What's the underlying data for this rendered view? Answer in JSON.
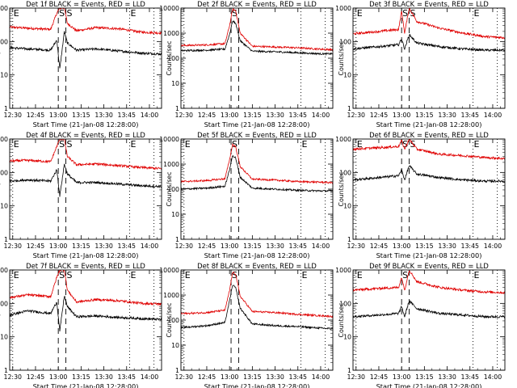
{
  "chart_data": [
    {
      "type": "line",
      "title": "Det 1f BLACK = Events, RED = LLD",
      "xlabel": "Start Time (21-Jan-08 12:28:00)",
      "ylabel": "Counts/sec",
      "x_ticks": [
        "12:30",
        "12:45",
        "13:00",
        "13:15",
        "13:30",
        "13:45",
        "14:00"
      ],
      "y_ticks": [
        "1",
        "10",
        "100",
        "1000"
      ],
      "ylim": [
        1,
        1000
      ],
      "y_scale": "log",
      "markers": [
        {
          "label": "E",
          "kind": "dotted",
          "time": "12:30"
        },
        {
          "label": "S",
          "kind": "dashed",
          "time": "13:00"
        },
        {
          "label": "S",
          "kind": "dashed",
          "time": "13:05"
        },
        {
          "label": "E",
          "kind": "dotted",
          "time": "13:47"
        },
        {
          "label": "",
          "kind": "dotted",
          "time": "14:03"
        }
      ],
      "series": [
        {
          "color": "#e00000",
          "x": [
            "12:28",
            "12:40",
            "12:55",
            "12:59",
            "13:01",
            "13:04",
            "13:06",
            "13:12",
            "13:25",
            "13:40",
            "13:55",
            "14:08"
          ],
          "values": [
            270,
            250,
            230,
            700,
            1000,
            1000,
            350,
            210,
            260,
            240,
            190,
            180
          ]
        },
        {
          "color": "#000000",
          "x": [
            "12:28",
            "12:40",
            "12:55",
            "12:59",
            "13:01",
            "13:04",
            "13:06",
            "13:12",
            "13:25",
            "13:40",
            "13:55",
            "14:08"
          ],
          "values": [
            65,
            60,
            55,
            110,
            15,
            200,
            90,
            55,
            60,
            52,
            45,
            42
          ]
        }
      ]
    },
    {
      "type": "line",
      "title": "Det 2f BLACK = Events, RED = LLD",
      "xlabel": "Start Time (21-Jan-08 12:28:00)",
      "ylabel": "Counts/sec",
      "x_ticks": [
        "12:30",
        "12:45",
        "13:00",
        "13:15",
        "13:30",
        "13:45",
        "14:00"
      ],
      "y_ticks": [
        "1",
        "10",
        "100",
        "1000",
        "10000"
      ],
      "ylim": [
        1,
        10000
      ],
      "y_scale": "log",
      "markers": [
        {
          "label": "",
          "kind": "dotted",
          "time": "12:30"
        },
        {
          "label": "S",
          "kind": "dashed",
          "time": "13:01"
        },
        {
          "label": "",
          "kind": "dashed",
          "time": "13:06"
        },
        {
          "label": "",
          "kind": "dotted",
          "time": "13:47"
        },
        {
          "label": "",
          "kind": "dotted",
          "time": "14:03"
        }
      ],
      "series": [
        {
          "color": "#e00000",
          "x": [
            "12:28",
            "12:45",
            "12:57",
            "13:00",
            "13:02",
            "13:04",
            "13:07",
            "13:15",
            "13:30",
            "13:45",
            "14:00",
            "14:08"
          ],
          "values": [
            320,
            340,
            380,
            2000,
            9000,
            8000,
            1000,
            300,
            280,
            260,
            230,
            220
          ]
        },
        {
          "color": "#000000",
          "x": [
            "12:28",
            "12:45",
            "12:57",
            "13:00",
            "13:02",
            "13:04",
            "13:07",
            "13:15",
            "13:30",
            "13:45",
            "14:00",
            "14:08"
          ],
          "values": [
            200,
            210,
            230,
            900,
            3000,
            2500,
            500,
            190,
            180,
            165,
            150,
            150
          ]
        }
      ]
    },
    {
      "type": "line",
      "title": "Det 3f BLACK = Events, RED = LLD",
      "xlabel": "Start Time (21-Jan-08 12:28:00)",
      "ylabel": "Counts/sec",
      "x_ticks": [
        "12:30",
        "12:45",
        "13:00",
        "13:15",
        "13:30",
        "13:45",
        "14:00"
      ],
      "y_ticks": [
        "1",
        "10",
        "100",
        "1000"
      ],
      "ylim": [
        1,
        1000
      ],
      "y_scale": "log",
      "markers": [
        {
          "label": "E",
          "kind": "dotted",
          "time": "12:30"
        },
        {
          "label": "S",
          "kind": "dashed",
          "time": "13:00"
        },
        {
          "label": "S",
          "kind": "dashed",
          "time": "13:05"
        },
        {
          "label": "E",
          "kind": "dotted",
          "time": "13:47"
        },
        {
          "label": "",
          "kind": "dotted",
          "time": "14:03"
        }
      ],
      "series": [
        {
          "color": "#e00000",
          "x": [
            "12:28",
            "12:45",
            "12:58",
            "13:00",
            "13:02",
            "13:05",
            "13:10",
            "13:25",
            "13:40",
            "13:55",
            "14:08"
          ],
          "values": [
            170,
            200,
            230,
            800,
            180,
            1000,
            400,
            250,
            180,
            140,
            130
          ]
        },
        {
          "color": "#000000",
          "x": [
            "12:28",
            "12:45",
            "12:58",
            "13:00",
            "13:02",
            "13:05",
            "13:10",
            "13:25",
            "13:40",
            "13:55",
            "14:08"
          ],
          "values": [
            60,
            70,
            80,
            120,
            60,
            160,
            90,
            70,
            60,
            55,
            55
          ]
        }
      ]
    },
    {
      "type": "line",
      "title": "Det 4f BLACK = Events, RED = LLD",
      "xlabel": "Start Time (21-Jan-08 12:28:00)",
      "ylabel": "Counts/sec",
      "x_ticks": [
        "12:30",
        "12:45",
        "13:00",
        "13:15",
        "13:30",
        "13:45",
        "14:00"
      ],
      "y_ticks": [
        "1",
        "10",
        "100",
        "1000"
      ],
      "ylim": [
        1,
        1000
      ],
      "y_scale": "log",
      "markers": [
        {
          "label": "E",
          "kind": "dotted",
          "time": "12:30"
        },
        {
          "label": "S",
          "kind": "dashed",
          "time": "13:00"
        },
        {
          "label": "S",
          "kind": "dashed",
          "time": "13:05"
        },
        {
          "label": "E",
          "kind": "dotted",
          "time": "13:47"
        },
        {
          "label": "",
          "kind": "dotted",
          "time": "14:03"
        }
      ],
      "series": [
        {
          "color": "#e00000",
          "x": [
            "12:28",
            "12:40",
            "12:55",
            "12:59",
            "13:01",
            "13:04",
            "13:06",
            "13:12",
            "13:25",
            "13:40",
            "13:55",
            "14:08"
          ],
          "values": [
            220,
            230,
            210,
            600,
            1000,
            1000,
            300,
            170,
            180,
            160,
            140,
            130
          ]
        },
        {
          "color": "#000000",
          "x": [
            "12:28",
            "12:40",
            "12:55",
            "12:59",
            "13:01",
            "13:04",
            "13:06",
            "13:12",
            "13:25",
            "13:40",
            "13:55",
            "14:08"
          ],
          "values": [
            55,
            60,
            55,
            120,
            20,
            180,
            90,
            50,
            50,
            45,
            40,
            38
          ]
        }
      ]
    },
    {
      "type": "line",
      "title": "Det 5f BLACK = Events, RED = LLD",
      "xlabel": "Start Time (21-Jan-08 12:28:00)",
      "ylabel": "Counts/sec",
      "x_ticks": [
        "12:30",
        "12:45",
        "13:00",
        "13:15",
        "13:30",
        "13:45",
        "14:00"
      ],
      "y_ticks": [
        "1",
        "10",
        "100",
        "1000",
        "10000"
      ],
      "ylim": [
        1,
        10000
      ],
      "y_scale": "log",
      "markers": [
        {
          "label": "E",
          "kind": "dotted",
          "time": "12:30"
        },
        {
          "label": "S",
          "kind": "dashed",
          "time": "13:01"
        },
        {
          "label": "",
          "kind": "dashed",
          "time": "13:06"
        },
        {
          "label": "E",
          "kind": "dotted",
          "time": "13:47"
        },
        {
          "label": "",
          "kind": "dotted",
          "time": "14:03"
        }
      ],
      "series": [
        {
          "color": "#e00000",
          "x": [
            "12:28",
            "12:45",
            "12:57",
            "13:00",
            "13:02",
            "13:04",
            "13:07",
            "13:15",
            "13:30",
            "13:45",
            "14:00",
            "14:08"
          ],
          "values": [
            200,
            220,
            260,
            1500,
            6000,
            5000,
            800,
            250,
            230,
            200,
            190,
            180
          ]
        },
        {
          "color": "#000000",
          "x": [
            "12:28",
            "12:45",
            "12:57",
            "13:00",
            "13:02",
            "13:04",
            "13:07",
            "13:15",
            "13:30",
            "13:45",
            "14:00",
            "14:08"
          ],
          "values": [
            100,
            110,
            130,
            600,
            2200,
            1800,
            300,
            110,
            100,
            90,
            85,
            85
          ]
        }
      ]
    },
    {
      "type": "line",
      "title": "Det 6f BLACK = Events, RED = LLD",
      "xlabel": "Start Time (21-Jan-08 12:28:00)",
      "ylabel": "Counts/sec",
      "x_ticks": [
        "12:30",
        "12:45",
        "13:00",
        "13:15",
        "13:30",
        "13:45",
        "14:00"
      ],
      "y_ticks": [
        "1",
        "10",
        "100",
        "1000"
      ],
      "ylim": [
        1,
        1000
      ],
      "y_scale": "log",
      "markers": [
        {
          "label": "E",
          "kind": "dotted",
          "time": "12:30"
        },
        {
          "label": "S",
          "kind": "dashed",
          "time": "13:00"
        },
        {
          "label": "S",
          "kind": "dashed",
          "time": "13:05"
        },
        {
          "label": "E",
          "kind": "dotted",
          "time": "13:47"
        },
        {
          "label": "",
          "kind": "dotted",
          "time": "14:03"
        }
      ],
      "series": [
        {
          "color": "#e00000",
          "x": [
            "12:28",
            "12:45",
            "12:58",
            "13:00",
            "13:02",
            "13:05",
            "13:10",
            "13:25",
            "13:40",
            "13:55",
            "14:08"
          ],
          "values": [
            500,
            550,
            600,
            900,
            500,
            1000,
            500,
            350,
            320,
            280,
            260
          ]
        },
        {
          "color": "#000000",
          "x": [
            "12:28",
            "12:45",
            "12:58",
            "13:00",
            "13:02",
            "13:05",
            "13:10",
            "13:25",
            "13:40",
            "13:55",
            "14:08"
          ],
          "values": [
            60,
            70,
            80,
            120,
            60,
            160,
            90,
            70,
            60,
            55,
            55
          ]
        }
      ]
    },
    {
      "type": "line",
      "title": "Det 7f BLACK = Events, RED = LLD",
      "xlabel": "Start Time (21-Jan-08 12:28:00)",
      "ylabel": "Counts/sec",
      "x_ticks": [
        "12:30",
        "12:45",
        "13:00",
        "13:15",
        "13:30",
        "13:45",
        "14:00"
      ],
      "y_ticks": [
        "1",
        "10",
        "100",
        "1000"
      ],
      "ylim": [
        1,
        1000
      ],
      "y_scale": "log",
      "markers": [
        {
          "label": "E",
          "kind": "dotted",
          "time": "12:30"
        },
        {
          "label": "S",
          "kind": "dashed",
          "time": "13:00"
        },
        {
          "label": "S",
          "kind": "dashed",
          "time": "13:05"
        },
        {
          "label": "E",
          "kind": "dotted",
          "time": "13:47"
        },
        {
          "label": "",
          "kind": "dotted",
          "time": "14:03"
        }
      ],
      "series": [
        {
          "color": "#e00000",
          "x": [
            "12:28",
            "12:40",
            "12:55",
            "12:59",
            "13:01",
            "13:04",
            "13:06",
            "13:12",
            "13:25",
            "13:40",
            "13:55",
            "14:08"
          ],
          "values": [
            150,
            180,
            160,
            600,
            1000,
            1000,
            250,
            110,
            130,
            120,
            100,
            95
          ]
        },
        {
          "color": "#000000",
          "x": [
            "12:28",
            "12:40",
            "12:55",
            "12:59",
            "13:01",
            "13:04",
            "13:06",
            "13:12",
            "13:25",
            "13:40",
            "13:55",
            "14:08"
          ],
          "values": [
            45,
            60,
            50,
            110,
            15,
            170,
            80,
            40,
            42,
            38,
            35,
            33
          ]
        }
      ]
    },
    {
      "type": "line",
      "title": "Det 8f BLACK = Events, RED = LLD",
      "xlabel": "Start Time (21-Jan-08 12:28:00)",
      "ylabel": "Counts/sec",
      "x_ticks": [
        "12:30",
        "12:45",
        "13:00",
        "13:15",
        "13:30",
        "13:45",
        "14:00"
      ],
      "y_ticks": [
        "1",
        "10",
        "100",
        "1000",
        "10000"
      ],
      "ylim": [
        1,
        10000
      ],
      "y_scale": "log",
      "markers": [
        {
          "label": "E",
          "kind": "dotted",
          "time": "12:30"
        },
        {
          "label": "S",
          "kind": "dashed",
          "time": "13:01"
        },
        {
          "label": "",
          "kind": "dashed",
          "time": "13:06"
        },
        {
          "label": "E",
          "kind": "dotted",
          "time": "13:47"
        },
        {
          "label": "",
          "kind": "dotted",
          "time": "14:03"
        }
      ],
      "series": [
        {
          "color": "#e00000",
          "x": [
            "12:28",
            "12:45",
            "12:57",
            "13:00",
            "13:02",
            "13:04",
            "13:07",
            "13:15",
            "13:30",
            "13:45",
            "14:00",
            "14:08"
          ],
          "values": [
            180,
            200,
            250,
            1500,
            8000,
            7000,
            900,
            220,
            200,
            170,
            150,
            140
          ]
        },
        {
          "color": "#000000",
          "x": [
            "12:28",
            "12:45",
            "12:57",
            "13:00",
            "13:02",
            "13:04",
            "13:07",
            "13:15",
            "13:30",
            "13:45",
            "14:00",
            "14:08"
          ],
          "values": [
            50,
            60,
            80,
            600,
            2500,
            2000,
            300,
            70,
            60,
            55,
            48,
            45
          ]
        }
      ]
    },
    {
      "type": "line",
      "title": "Det 9f BLACK = Events, RED = LLD",
      "xlabel": "Start Time (21-Jan-08 12:28:00)",
      "ylabel": "Counts/sec",
      "x_ticks": [
        "12:30",
        "12:45",
        "13:00",
        "13:15",
        "13:30",
        "13:45",
        "14:00"
      ],
      "y_ticks": [
        "1",
        "10",
        "100",
        "1000"
      ],
      "ylim": [
        1,
        1000
      ],
      "y_scale": "log",
      "markers": [
        {
          "label": "E",
          "kind": "dotted",
          "time": "12:30"
        },
        {
          "label": "S",
          "kind": "dashed",
          "time": "13:00"
        },
        {
          "label": "",
          "kind": "dashed",
          "time": "13:05"
        },
        {
          "label": "E",
          "kind": "dotted",
          "time": "13:47"
        },
        {
          "label": "",
          "kind": "dotted",
          "time": "14:03"
        }
      ],
      "series": [
        {
          "color": "#e00000",
          "x": [
            "12:28",
            "12:45",
            "12:58",
            "13:00",
            "13:02",
            "13:05",
            "13:10",
            "13:25",
            "13:40",
            "13:55",
            "14:08"
          ],
          "values": [
            250,
            280,
            300,
            600,
            250,
            1000,
            450,
            300,
            250,
            220,
            210
          ]
        },
        {
          "color": "#000000",
          "x": [
            "12:28",
            "12:45",
            "12:58",
            "13:00",
            "13:02",
            "13:05",
            "13:10",
            "13:25",
            "13:40",
            "13:55",
            "14:08"
          ],
          "values": [
            40,
            45,
            50,
            80,
            40,
            120,
            70,
            50,
            45,
            40,
            40
          ]
        }
      ]
    }
  ]
}
